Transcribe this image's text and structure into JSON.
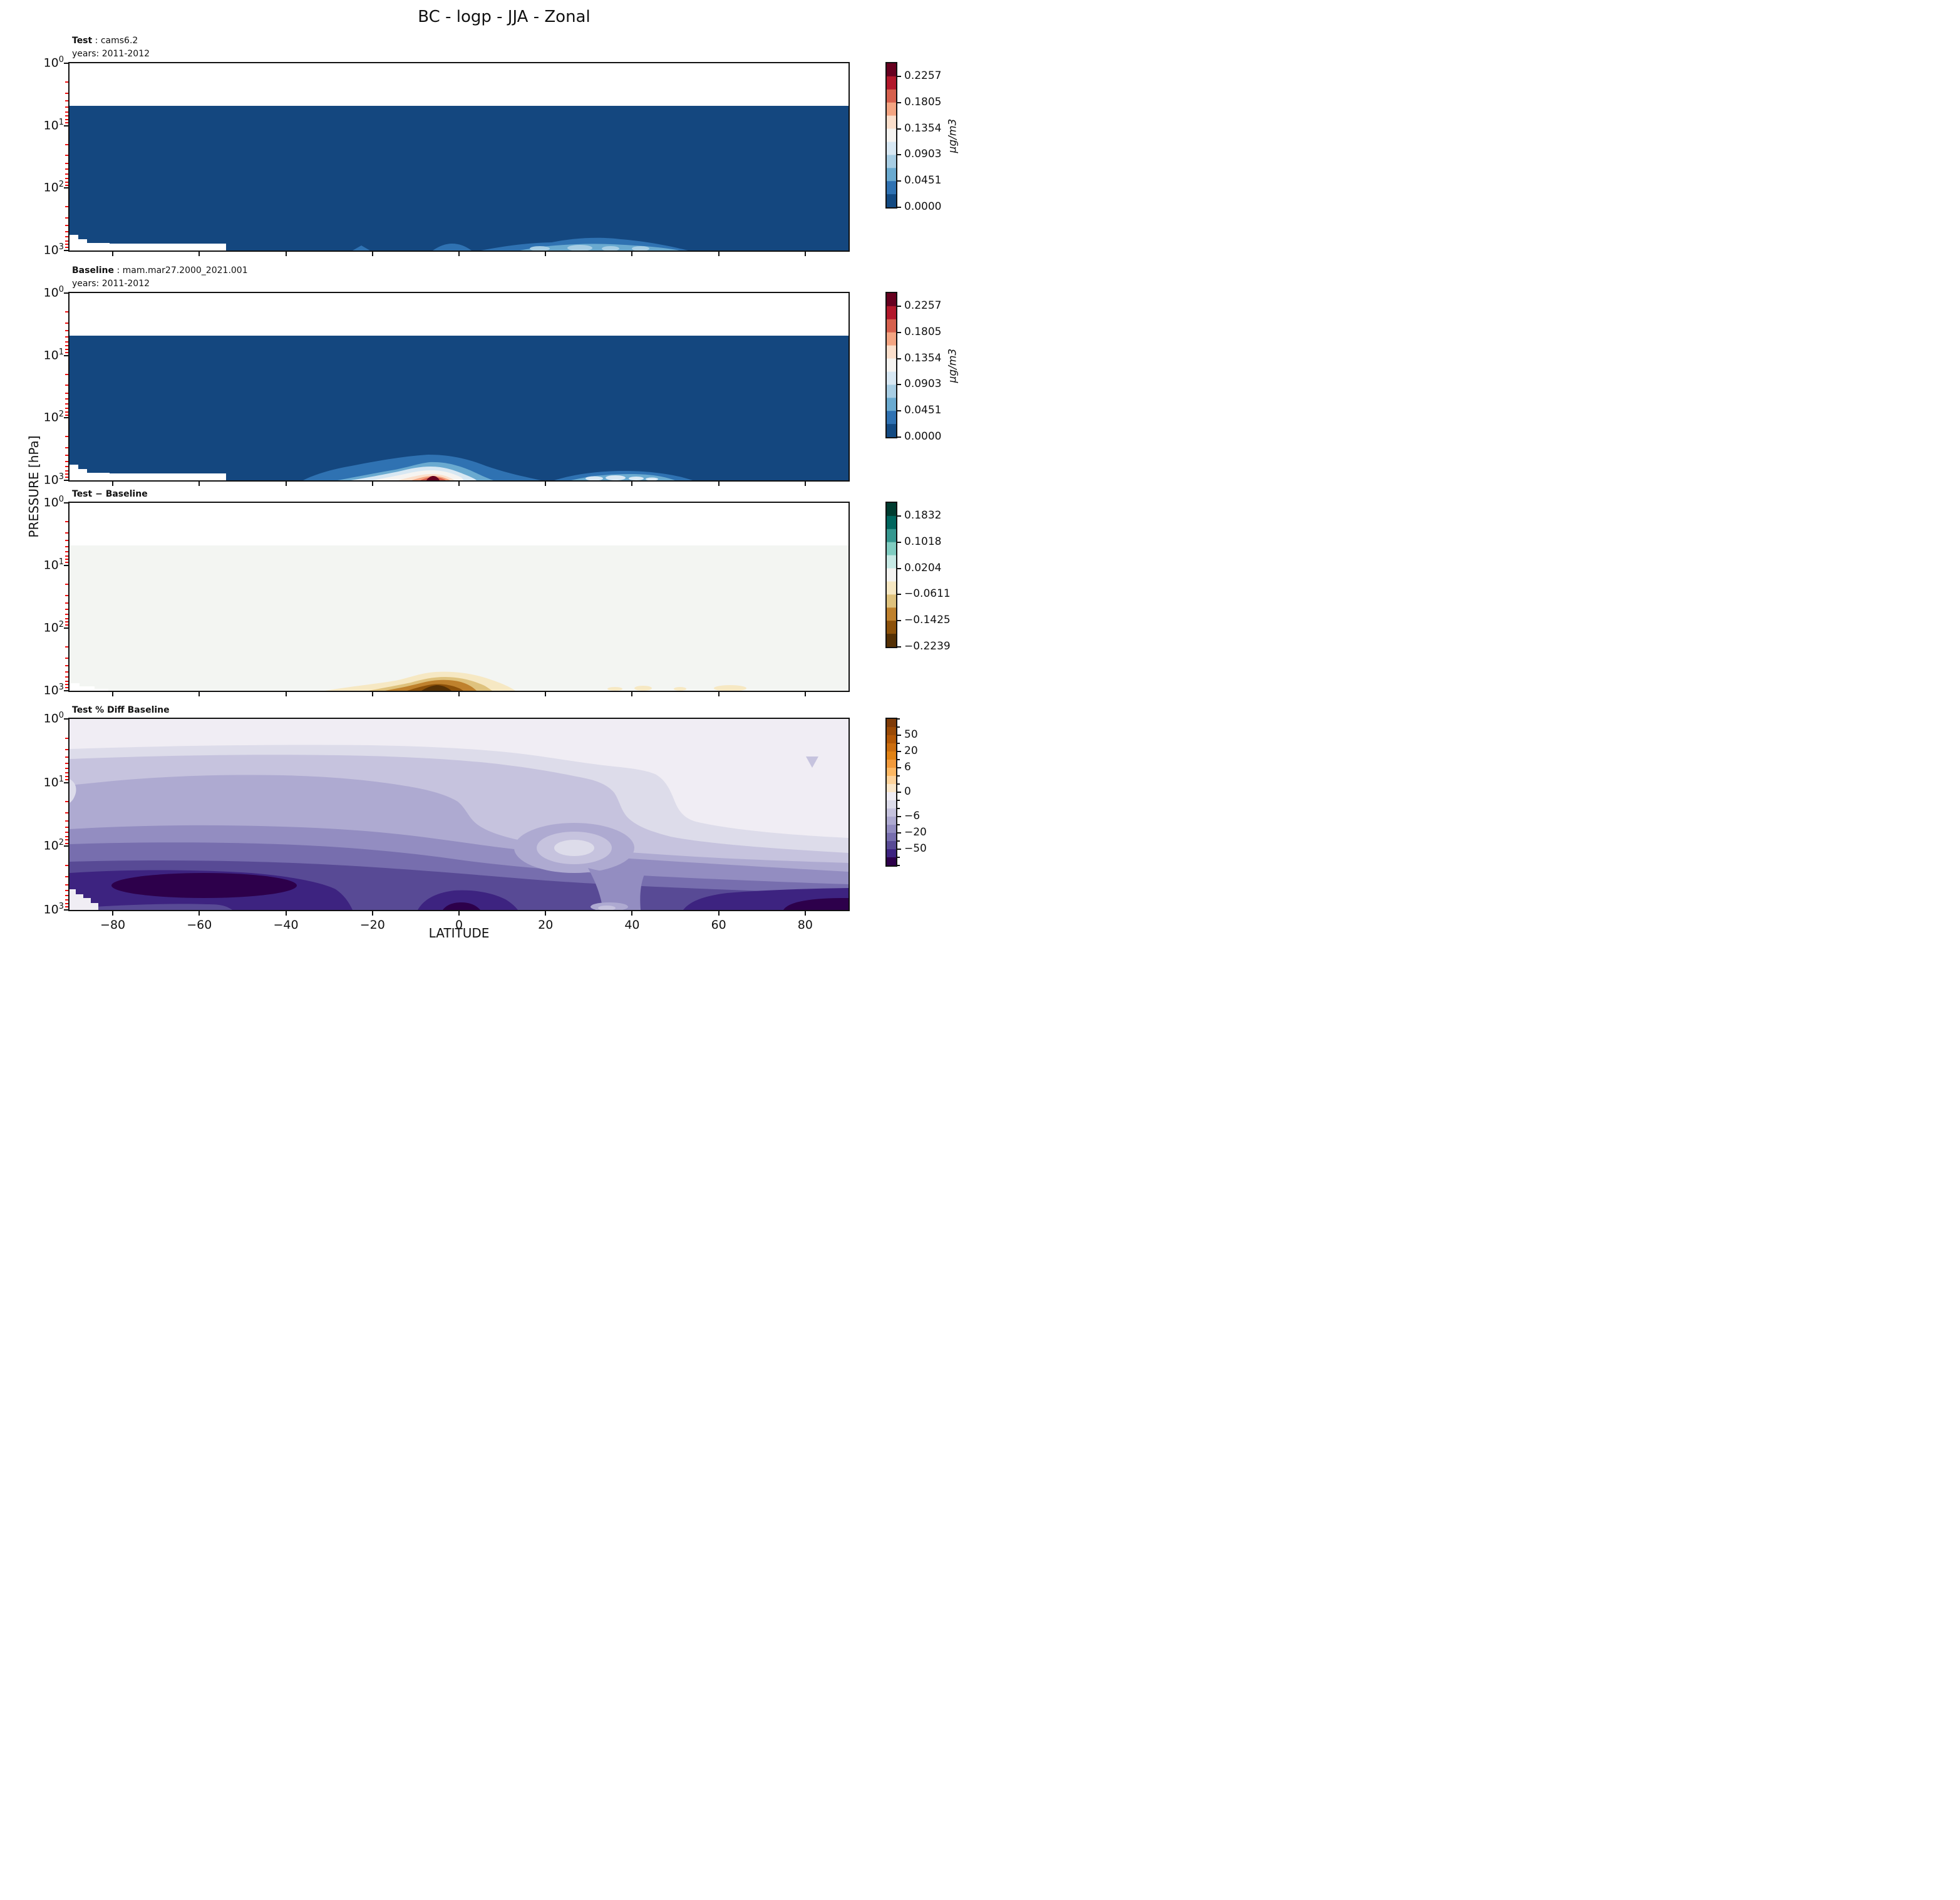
{
  "title": "BC - logp - JJA - Zonal",
  "axes": {
    "x_label": "LATITUDE",
    "x_ticks": [
      "−80",
      "−60",
      "−40",
      "−20",
      "0",
      "20",
      "40",
      "60",
      "80"
    ],
    "x_tick_lats": [
      -80,
      -60,
      -40,
      -20,
      0,
      20,
      40,
      60,
      80
    ],
    "y_label": "PRESSURE [hPa]",
    "y_tick_base": "10",
    "y_tick_exponents": [
      "0",
      "1",
      "2",
      "3"
    ],
    "y_scale": "log",
    "x_range": [
      -90,
      90
    ],
    "y_range_hpa": [
      1,
      1000
    ]
  },
  "panels": [
    {
      "id": "test",
      "header_bold": "Test",
      "header_sep": " : ",
      "header_value": "cams6.2",
      "subheader": "years: 2011-2012"
    },
    {
      "id": "baseline",
      "header_bold": "Baseline",
      "header_sep": " : ",
      "header_value": "mam.mar27.2000_2021.001",
      "subheader": "years: 2011-2012"
    },
    {
      "id": "diff",
      "header_bold": "Test − Baseline",
      "header_sep": "",
      "header_value": "",
      "subheader": ""
    },
    {
      "id": "pct-diff",
      "header_bold": "Test % Diff Baseline",
      "header_sep": "",
      "header_value": "",
      "subheader": ""
    }
  ],
  "colorbars": [
    {
      "unit": "μg/m3",
      "ticks": [
        "0.2257",
        "0.1805",
        "0.1354",
        "0.0903",
        "0.0451",
        "0.0000"
      ]
    },
    {
      "unit": "μg/m3",
      "ticks": [
        "0.2257",
        "0.1805",
        "0.1354",
        "0.0903",
        "0.0451",
        "0.0000"
      ]
    },
    {
      "unit": "",
      "ticks": [
        "0.1832",
        "0.1018",
        "0.0204",
        "−0.0611",
        "−0.1425",
        "−0.2239"
      ]
    },
    {
      "unit": "",
      "ticks": [
        "50",
        "20",
        "6",
        "0",
        "−6",
        "−20",
        "−50"
      ]
    }
  ],
  "palettes": {
    "rdbu_top_to_bottom": [
      "#67001f",
      "#b2182b",
      "#d6604d",
      "#f4a582",
      "#fbdfcb",
      "#f6f4f1",
      "#d8e8f3",
      "#a8cee4",
      "#6aaad0",
      "#2f72b2",
      "#134a82"
    ],
    "brbg_top_to_bottom": [
      "#003c30",
      "#01665e",
      "#35978f",
      "#80cdc1",
      "#c7eae5",
      "#f4f4f1",
      "#f6e8c3",
      "#dfc27d",
      "#bf812d",
      "#8c510a",
      "#543005"
    ],
    "puor_top_to_bottom": [
      "#7f3b08",
      "#9a4a06",
      "#b35806",
      "#cb6d0e",
      "#e08214",
      "#f19a3c",
      "#fdb863",
      "#fed39b",
      "#fbe7ca",
      "#f0edf4",
      "#dddcea",
      "#c6c3de",
      "#aeaad1",
      "#938dc1",
      "#776eae",
      "#584a95",
      "#3d2380",
      "#2d004b"
    ],
    "field_blue": "#14477f",
    "panel3_background": "#f3f5f2",
    "minor_tick_red": "#ee1111"
  },
  "chart_data": [
    {
      "type": "heatmap",
      "title": "Test : cams6.2 (years: 2011-2012)",
      "xlabel": "LATITUDE",
      "ylabel": "PRESSURE [hPa]",
      "x_range": [
        -90,
        90
      ],
      "y_range_hpa_log": [
        1,
        1000
      ],
      "units": "μg/m3",
      "colorbar_ticks": [
        0.2257,
        0.1805,
        0.1354,
        0.0903,
        0.0451,
        0.0
      ],
      "description": "Field ~0 everywhere (dark blue); no data above ~5 hPa (white); white sliver along surface from lat -90 to -55; weak near-surface maxima ~0.02-0.07 ug/m3 around lat -22, lat -5..3 and a broad band lat 5..50 peaking near lat 25..42 at 1000 hPa"
    },
    {
      "type": "heatmap",
      "title": "Baseline : mam.mar27.2000_2021.001 (years: 2011-2012)",
      "xlabel": "LATITUDE",
      "ylabel": "PRESSURE [hPa]",
      "x_range": [
        -90,
        90
      ],
      "y_range_hpa_log": [
        1,
        1000
      ],
      "units": "μg/m3",
      "colorbar_ticks": [
        0.2257,
        0.1805,
        0.1354,
        0.0903,
        0.0451,
        0.0
      ],
      "description": "Same as Test but with strong near-surface plume centered near lat -5 at 1000 hPa reaching ~0.24 ug/m3 (dark red core, concentric rings down through salmon, white, light blue), spanning lat -35..20 below ~700 hPa; secondary weak maximum ~0.09-0.13 ug/m3 for lat 25..52 near surface"
    },
    {
      "type": "heatmap",
      "title": "Test − Baseline",
      "xlabel": "LATITUDE",
      "ylabel": "PRESSURE [hPa]",
      "x_range": [
        -90,
        90
      ],
      "y_range_hpa_log": [
        1,
        1000
      ],
      "units": "μg/m3",
      "colorbar_ticks": [
        0.1832,
        0.1018,
        0.0204,
        -0.0611,
        -0.1425,
        -0.2239
      ],
      "description": "Difference ~0 everywhere (light gray) except brown negative blob near surface lat -31..13 with dark-brown core ~-0.22 near lat -8 at 1000 hPa; faint tan patches near surface around lat 35..65"
    },
    {
      "type": "heatmap",
      "title": "Test % Diff Baseline",
      "xlabel": "LATITUDE",
      "ylabel": "PRESSURE [hPa]",
      "x_range": [
        -90,
        90
      ],
      "y_range_hpa_log": [
        1,
        1000
      ],
      "units": "%",
      "colorbar_ticks": [
        50,
        20,
        6,
        0,
        -6,
        -20,
        -50
      ],
      "description": "Percent difference negative nearly everywhere: near 0 at top of atmosphere, banded purple layers strengthening downward to below -50% between ~200 and 1000 hPa; darkest (~-70%) lobes near lat -75..-40 and lat 50..90; lighter bubble (~-4%) near lat 28 at ~100-200 hPa; light wedge at bottom-left corner"
    }
  ]
}
